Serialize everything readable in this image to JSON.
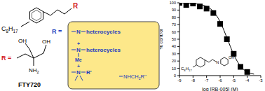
{
  "structure": {
    "top": {
      "chain": "C8H17",
      "r": "R"
    },
    "fty720": {
      "r_label": "R =",
      "oh_left": "OH",
      "oh_right": "OH",
      "amine": "NH2",
      "name": "FTY720"
    },
    "box": {
      "r_label": "R =",
      "items": [
        {
          "atom": "N",
          "group": "heterocycles"
        },
        {
          "atom": "N",
          "group": "heterocycles",
          "charge": "+",
          "substituent": "Me"
        },
        {
          "atom": "N",
          "group": "R'",
          "charge": "+"
        },
        {
          "group": "NHCH2R''"
        }
      ]
    },
    "inset": {
      "chain": "C8H17",
      "atom": "N",
      "hydroxyl": "OH"
    }
  },
  "chart_data": {
    "type": "scatter",
    "x_label": "log [RB-005] (M)",
    "y_label": "% control",
    "xlim": [
      -9,
      -3
    ],
    "xticks": [
      -9,
      -8,
      -7,
      -6,
      -5,
      -4,
      -3
    ],
    "ylim": [
      0,
      100
    ],
    "yticks": [
      0,
      10,
      20,
      30,
      40,
      50,
      60,
      70,
      80,
      90,
      100
    ],
    "series": [
      {
        "type": "scatter",
        "marker": "square",
        "color": "#000000",
        "x": [
          -9,
          -8.5,
          -8,
          -7.5,
          -7,
          -6.5,
          -6,
          -5.5,
          -5,
          -4.5,
          -4
        ],
        "values": [
          100,
          97,
          99,
          95,
          92,
          86,
          71,
          50,
          30,
          12,
          5
        ]
      },
      {
        "type": "line",
        "color": "#000000",
        "x": [
          -9,
          -8,
          -7,
          -6.5,
          -6,
          -5.5,
          -5,
          -4.5,
          -4,
          -3.5
        ],
        "values": [
          100,
          99,
          95,
          88,
          74,
          52,
          29,
          13,
          5,
          2
        ]
      }
    ]
  }
}
